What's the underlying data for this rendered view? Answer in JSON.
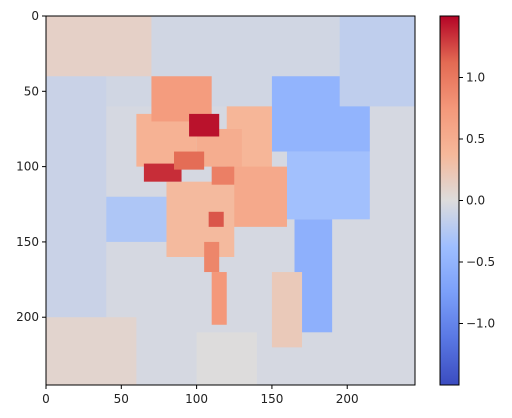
{
  "chart_data": {
    "type": "heatmap",
    "title": "",
    "xlabel": "",
    "ylabel": "",
    "grid": false,
    "colormap": "coolwarm",
    "image_extent": {
      "x": [
        0,
        245
      ],
      "y": [
        0,
        245
      ]
    },
    "x_ticks": [
      0,
      50,
      100,
      150,
      200
    ],
    "y_ticks": [
      0,
      50,
      100,
      150,
      200
    ],
    "y_inverted": true,
    "colorbar": {
      "range": [
        -1.5,
        1.5
      ],
      "ticks": [
        1.0,
        0.5,
        0.0,
        -0.5,
        -1.0
      ],
      "tick_labels": [
        "1.0",
        "0.5",
        "0.0",
        "−0.5",
        "−1.0"
      ]
    },
    "background_value": -0.05,
    "regions": [
      {
        "x": [
          0,
          245
        ],
        "y": [
          0,
          60
        ],
        "value": -0.08
      },
      {
        "x": [
          0,
          40
        ],
        "y": [
          0,
          245
        ],
        "value": -0.12
      },
      {
        "x": [
          150,
          215
        ],
        "y": [
          40,
          90
        ],
        "value": -0.5
      },
      {
        "x": [
          160,
          215
        ],
        "y": [
          90,
          135
        ],
        "value": -0.35
      },
      {
        "x": [
          165,
          190
        ],
        "y": [
          135,
          210
        ],
        "value": -0.55
      },
      {
        "x": [
          0,
          70
        ],
        "y": [
          0,
          40
        ],
        "value": 0.12
      },
      {
        "x": [
          195,
          245
        ],
        "y": [
          0,
          60
        ],
        "value": -0.18
      },
      {
        "x": [
          60,
          100
        ],
        "y": [
          65,
          100
        ],
        "value": 0.45
      },
      {
        "x": [
          120,
          150
        ],
        "y": [
          60,
          110
        ],
        "value": 0.4
      },
      {
        "x": [
          120,
          160
        ],
        "y": [
          100,
          140
        ],
        "value": 0.55
      },
      {
        "x": [
          80,
          125
        ],
        "y": [
          110,
          160
        ],
        "value": 0.35
      },
      {
        "x": [
          70,
          110
        ],
        "y": [
          40,
          70
        ],
        "value": 0.7
      },
      {
        "x": [
          100,
          130
        ],
        "y": [
          75,
          100
        ],
        "value": 0.5
      },
      {
        "x": [
          110,
          120
        ],
        "y": [
          170,
          205
        ],
        "value": 0.75
      },
      {
        "x": [
          150,
          170
        ],
        "y": [
          170,
          220
        ],
        "value": 0.2
      },
      {
        "x": [
          40,
          80
        ],
        "y": [
          120,
          150
        ],
        "value": -0.28
      },
      {
        "x": [
          0,
          60
        ],
        "y": [
          200,
          245
        ],
        "value": 0.08
      },
      {
        "x": [
          100,
          140
        ],
        "y": [
          210,
          245
        ],
        "value": 0.0
      }
    ],
    "hotspots": [
      {
        "x": [
          95,
          115
        ],
        "y": [
          65,
          80
        ],
        "value": 1.45
      },
      {
        "x": [
          65,
          90
        ],
        "y": [
          98,
          110
        ],
        "value": 1.35
      },
      {
        "x": [
          85,
          105
        ],
        "y": [
          90,
          102
        ],
        "value": 1.1
      },
      {
        "x": [
          110,
          125
        ],
        "y": [
          100,
          112
        ],
        "value": 0.95
      },
      {
        "x": [
          108,
          118
        ],
        "y": [
          130,
          140
        ],
        "value": 1.2
      },
      {
        "x": [
          105,
          115
        ],
        "y": [
          150,
          170
        ],
        "value": 0.9
      }
    ]
  }
}
